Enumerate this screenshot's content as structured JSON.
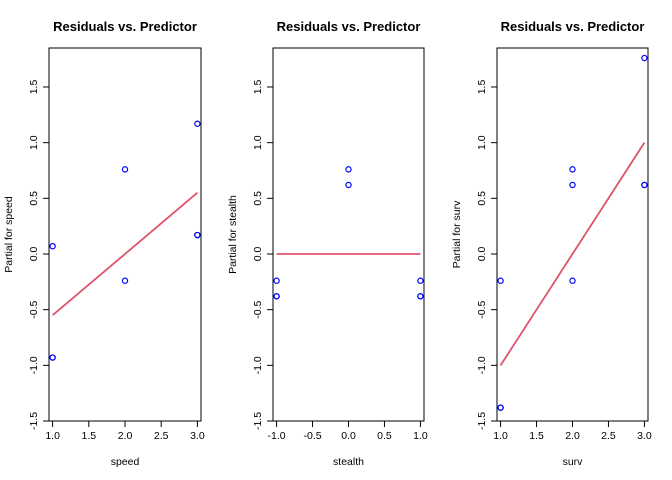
{
  "chart_data": [
    {
      "type": "scatter",
      "title": "Residuals vs. Predictor",
      "xlabel": "speed",
      "ylabel": "Partial for speed",
      "xlim": [
        0.95,
        3.05
      ],
      "ylim": [
        -1.5,
        1.85
      ],
      "xticks": [
        1.0,
        1.5,
        2.0,
        2.5,
        3.0
      ],
      "xtick_labels": [
        "1.0",
        "1.5",
        "2.0",
        "2.5",
        "3.0"
      ],
      "yticks": [
        -1.5,
        -1.0,
        -0.5,
        0.0,
        0.5,
        1.0,
        1.5
      ],
      "ytick_labels": [
        "-1.5",
        "-1.0",
        "-0.5",
        "0.0",
        "0.5",
        "1.0",
        "1.5"
      ],
      "points": {
        "x": [
          1,
          1,
          1,
          2,
          2,
          3,
          3,
          3
        ],
        "y": [
          0.07,
          -0.93,
          -0.93,
          0.76,
          -0.24,
          1.17,
          0.17,
          0.17
        ]
      },
      "fit_line": {
        "x": [
          1,
          3
        ],
        "y": [
          -0.55,
          0.55
        ]
      },
      "point_color": "#0000ff",
      "line_color": "#df536b",
      "grid": false
    },
    {
      "type": "scatter",
      "title": "Residuals vs. Predictor",
      "xlabel": "stealth",
      "ylabel": "Partial for stealth",
      "xlim": [
        -1.05,
        1.05
      ],
      "ylim": [
        -1.5,
        1.85
      ],
      "xticks": [
        -1.0,
        -0.5,
        0.0,
        0.5,
        1.0
      ],
      "xtick_labels": [
        "-1.0",
        "-0.5",
        "0.0",
        "0.5",
        "1.0"
      ],
      "yticks": [
        -1.5,
        -1.0,
        -0.5,
        0.0,
        0.5,
        1.0,
        1.5
      ],
      "ytick_labels": [
        "-1.5",
        "-1.0",
        "-0.5",
        "0.0",
        "0.5",
        "1.0",
        "1.5"
      ],
      "points": {
        "x": [
          -1,
          -1,
          -1,
          0,
          0,
          1,
          1,
          1
        ],
        "y": [
          -0.24,
          -0.38,
          -0.38,
          0.76,
          0.62,
          -0.24,
          -0.38,
          -0.38
        ]
      },
      "fit_line": {
        "x": [
          -1,
          1
        ],
        "y": [
          0.0,
          0.0
        ]
      },
      "point_color": "#0000ff",
      "line_color": "#df536b",
      "grid": false
    },
    {
      "type": "scatter",
      "title": "Residuals vs. Predictor",
      "xlabel": "surv",
      "ylabel": "Partial for surv",
      "xlim": [
        0.95,
        3.05
      ],
      "ylim": [
        -1.5,
        1.85
      ],
      "xticks": [
        1.0,
        1.5,
        2.0,
        2.5,
        3.0
      ],
      "xtick_labels": [
        "1.0",
        "1.5",
        "2.0",
        "2.5",
        "3.0"
      ],
      "yticks": [
        -1.5,
        -1.0,
        -0.5,
        0.0,
        0.5,
        1.0,
        1.5
      ],
      "ytick_labels": [
        "-1.5",
        "-1.0",
        "-0.5",
        "0.0",
        "0.5",
        "1.0",
        "1.5"
      ],
      "points": {
        "x": [
          1,
          1,
          1,
          2,
          2,
          2,
          3,
          3,
          3
        ],
        "y": [
          -0.24,
          -1.38,
          -1.38,
          0.76,
          0.62,
          -0.24,
          1.76,
          0.62,
          0.62
        ]
      },
      "fit_line": {
        "x": [
          1,
          3
        ],
        "y": [
          -1.0,
          1.0
        ]
      },
      "point_color": "#0000ff",
      "line_color": "#df536b",
      "grid": false
    }
  ]
}
